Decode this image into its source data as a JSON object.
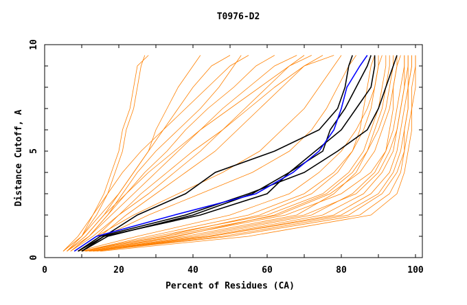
{
  "chart_data": {
    "type": "line",
    "title": "T0976-D2",
    "xlabel": "Percent of Residues (CA)",
    "ylabel": "Distance Cutoff, A",
    "xlim": [
      0,
      100
    ],
    "ylim": [
      0,
      10
    ],
    "xticks": [
      "0",
      "20",
      "40",
      "60",
      "80",
      "100"
    ],
    "yticks": [
      "0",
      "5",
      "10"
    ],
    "grid": false,
    "cutoffs": [
      0.3,
      1,
      2,
      3,
      4,
      5,
      6,
      7,
      8,
      9,
      9.5
    ],
    "colors": {
      "others": "#ff8000",
      "highlight": "#000000",
      "selected": "#0000ff"
    },
    "series": [
      {
        "group": "others",
        "percents": [
          5,
          10,
          14,
          17,
          19,
          21,
          22,
          24,
          25,
          26,
          27
        ]
      },
      {
        "group": "others",
        "percents": [
          6,
          11,
          16,
          20,
          24,
          28,
          32,
          36,
          40,
          45,
          50
        ]
      },
      {
        "group": "others",
        "percents": [
          5,
          9,
          13,
          17,
          21,
          26,
          32,
          38,
          44,
          50,
          55
        ]
      },
      {
        "group": "others",
        "percents": [
          7,
          12,
          18,
          24,
          30,
          36,
          42,
          48,
          55,
          62,
          68
        ]
      },
      {
        "group": "others",
        "percents": [
          6,
          11,
          16,
          22,
          28,
          35,
          42,
          50,
          58,
          66,
          72
        ]
      },
      {
        "group": "others",
        "percents": [
          8,
          14,
          20,
          26,
          33,
          40,
          48,
          55,
          62,
          70,
          75
        ]
      },
      {
        "group": "others",
        "percents": [
          5,
          10,
          15,
          20,
          24,
          28,
          30,
          33,
          36,
          40,
          42
        ]
      },
      {
        "group": "others",
        "percents": [
          7,
          13,
          20,
          28,
          35,
          42,
          48,
          54,
          60,
          66,
          70
        ]
      },
      {
        "group": "others",
        "percents": [
          6,
          12,
          17,
          22,
          27,
          33,
          38,
          44,
          51,
          57,
          62
        ]
      },
      {
        "group": "others",
        "percents": [
          9,
          15,
          22,
          30,
          38,
          46,
          52,
          58,
          64,
          70,
          78
        ]
      },
      {
        "group": "others",
        "percents": [
          6,
          10,
          13,
          16,
          18,
          20,
          21,
          23,
          24,
          25,
          28
        ]
      },
      {
        "group": "others",
        "percents": [
          7,
          12,
          17,
          21,
          25,
          30,
          36,
          42,
          47,
          51,
          53
        ]
      },
      {
        "group": "others",
        "percents": [
          8,
          14,
          24,
          36,
          48,
          58,
          64,
          70,
          74,
          78,
          80
        ]
      },
      {
        "group": "others",
        "percents": [
          9,
          16,
          28,
          42,
          56,
          66,
          72,
          76,
          79,
          82,
          84
        ]
      },
      {
        "group": "others",
        "percents": [
          10,
          30,
          60,
          75,
          82,
          86,
          88,
          90,
          91,
          92,
          92
        ]
      },
      {
        "group": "others",
        "percents": [
          12,
          40,
          70,
          84,
          90,
          93,
          95,
          96,
          97,
          98,
          98
        ]
      },
      {
        "group": "others",
        "percents": [
          14,
          45,
          78,
          88,
          93,
          95,
          96,
          97,
          98,
          99,
          99
        ]
      },
      {
        "group": "others",
        "percents": [
          11,
          35,
          65,
          80,
          88,
          92,
          94,
          95,
          96,
          97,
          97
        ]
      },
      {
        "group": "others",
        "percents": [
          13,
          50,
          85,
          93,
          96,
          97,
          98,
          99,
          99,
          100,
          100
        ]
      },
      {
        "group": "others",
        "percents": [
          10,
          28,
          55,
          70,
          78,
          83,
          86,
          88,
          89,
          90,
          90
        ]
      },
      {
        "group": "others",
        "percents": [
          12,
          42,
          72,
          83,
          89,
          92,
          93,
          94,
          94,
          95,
          95
        ]
      },
      {
        "group": "others",
        "percents": [
          15,
          55,
          88,
          95,
          97,
          98,
          99,
          99,
          100,
          100,
          100
        ]
      },
      {
        "group": "others",
        "percents": [
          11,
          38,
          68,
          78,
          84,
          87,
          89,
          91,
          92,
          93,
          93
        ]
      },
      {
        "group": "others",
        "percents": [
          10,
          32,
          58,
          72,
          79,
          83,
          85,
          86,
          87,
          88,
          89
        ]
      },
      {
        "group": "others",
        "percents": [
          12,
          45,
          80,
          90,
          94,
          96,
          97,
          98,
          98,
          98,
          98
        ]
      },
      {
        "group": "others",
        "percents": [
          9,
          25,
          50,
          66,
          74,
          80,
          84,
          87,
          89,
          90,
          91
        ]
      },
      {
        "group": "others",
        "percents": [
          13,
          48,
          82,
          91,
          95,
          97,
          97,
          98,
          98,
          99,
          99
        ]
      },
      {
        "group": "others",
        "percents": [
          11,
          36,
          62,
          76,
          83,
          87,
          90,
          92,
          93,
          94,
          94
        ]
      },
      {
        "group": "others",
        "percents": [
          12,
          44,
          75,
          86,
          91,
          94,
          95,
          96,
          97,
          97,
          97
        ]
      },
      {
        "group": "others",
        "percents": [
          10,
          33,
          63,
          77,
          85,
          89,
          91,
          93,
          94,
          95,
          96
        ]
      },
      {
        "group": "highlight",
        "percents": [
          9,
          16,
          25,
          38,
          46,
          62,
          74,
          79,
          81,
          82,
          83
        ]
      },
      {
        "group": "highlight",
        "percents": [
          10,
          17,
          40,
          56,
          66,
          75,
          77,
          81,
          84,
          87,
          88
        ]
      },
      {
        "group": "highlight",
        "percents": [
          9,
          15,
          38,
          55,
          70,
          79,
          87,
          90,
          92,
          94,
          95
        ]
      },
      {
        "group": "highlight",
        "percents": [
          10,
          16,
          42,
          60,
          66,
          73,
          80,
          84,
          88,
          89,
          89
        ]
      },
      {
        "group": "selected",
        "percents": [
          8,
          14,
          35,
          57,
          67,
          74,
          78,
          80,
          81.5,
          85,
          87
        ]
      }
    ]
  }
}
